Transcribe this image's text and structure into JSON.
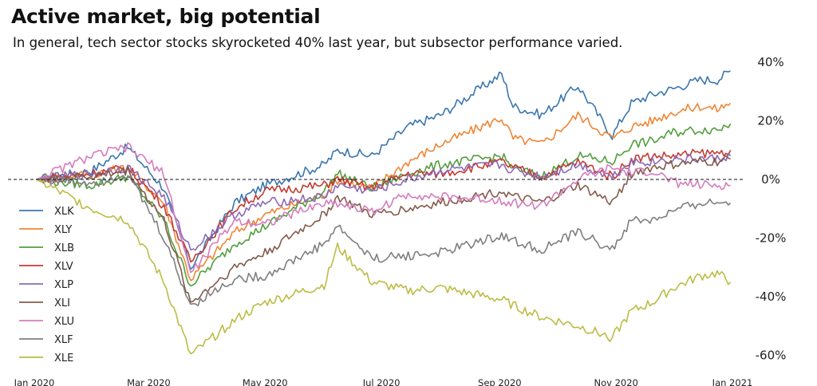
{
  "chart_data": {
    "type": "line",
    "title": "Active market, big potential",
    "subtitle": "In general, tech sector stocks skyrocketed 40% last year, but subsector performance varied.",
    "x_tick_labels": [
      "Jan 2020",
      "Mar 2020",
      "May 2020",
      "Jul 2020",
      "Sep 2020",
      "Nov 2020",
      "Jan 2021"
    ],
    "x_tick_dates": [
      "2020-01-01",
      "2020-03-01",
      "2020-05-01",
      "2020-07-01",
      "2020-09-01",
      "2020-11-01",
      "2021-01-01"
    ],
    "y_tick_values": [
      40,
      20,
      0,
      -20,
      -40,
      -60
    ],
    "y_tick_labels": [
      "40%",
      "20%",
      "0%",
      "-20%",
      "-40%",
      "-60%"
    ],
    "ylim": [
      -62,
      42
    ],
    "xlim": [
      "2020-01-01",
      "2021-01-01"
    ],
    "zero_line": "dashed",
    "legend_position": "left",
    "grid": false,
    "series": [
      {
        "name": "XLK",
        "color": "#3b76af",
        "x": [
          "2020-01-02",
          "2020-01-31",
          "2020-02-19",
          "2020-03-09",
          "2020-03-23",
          "2020-04-15",
          "2020-05-01",
          "2020-06-01",
          "2020-06-08",
          "2020-06-26",
          "2020-07-15",
          "2020-08-01",
          "2020-09-02",
          "2020-09-08",
          "2020-09-23",
          "2020-10-12",
          "2020-10-30",
          "2020-11-09",
          "2020-11-20",
          "2020-12-01",
          "2020-12-15",
          "2020-12-24",
          "2020-12-31"
        ],
        "y": [
          0,
          3,
          11,
          -3,
          -30,
          -8,
          -2,
          5,
          10,
          8,
          18,
          22,
          36,
          25,
          22,
          32,
          15,
          26,
          29,
          31,
          34,
          34,
          37
        ]
      },
      {
        "name": "XLY",
        "color": "#ef8636",
        "x": [
          "2020-01-02",
          "2020-01-31",
          "2020-02-19",
          "2020-03-09",
          "2020-03-23",
          "2020-04-15",
          "2020-05-01",
          "2020-06-01",
          "2020-06-08",
          "2020-06-26",
          "2020-07-15",
          "2020-08-01",
          "2020-09-02",
          "2020-09-08",
          "2020-09-23",
          "2020-10-12",
          "2020-10-30",
          "2020-11-09",
          "2020-11-20",
          "2020-12-01",
          "2020-12-15",
          "2020-12-24",
          "2020-12-31"
        ],
        "y": [
          0,
          2,
          4,
          -8,
          -34,
          -18,
          -12,
          -5,
          0,
          -3,
          6,
          12,
          21,
          14,
          12,
          22,
          14,
          18,
          20,
          23,
          25,
          24,
          26
        ]
      },
      {
        "name": "XLB",
        "color": "#529e3e",
        "x": [
          "2020-01-02",
          "2020-01-31",
          "2020-02-19",
          "2020-03-09",
          "2020-03-23",
          "2020-04-15",
          "2020-05-01",
          "2020-06-01",
          "2020-06-08",
          "2020-06-26",
          "2020-07-15",
          "2020-08-01",
          "2020-09-02",
          "2020-09-08",
          "2020-09-23",
          "2020-10-12",
          "2020-10-30",
          "2020-11-09",
          "2020-11-20",
          "2020-12-01",
          "2020-12-15",
          "2020-12-24",
          "2020-12-31"
        ],
        "y": [
          0,
          -2,
          1,
          -14,
          -36,
          -22,
          -16,
          -4,
          2,
          -3,
          2,
          5,
          8,
          4,
          1,
          8,
          6,
          12,
          13,
          16,
          17,
          17,
          19
        ]
      },
      {
        "name": "XLV",
        "color": "#c53a32",
        "x": [
          "2020-01-02",
          "2020-01-31",
          "2020-02-19",
          "2020-03-09",
          "2020-03-23",
          "2020-04-15",
          "2020-05-01",
          "2020-06-01",
          "2020-06-08",
          "2020-06-26",
          "2020-07-15",
          "2020-08-01",
          "2020-09-02",
          "2020-09-08",
          "2020-09-23",
          "2020-10-12",
          "2020-10-30",
          "2020-11-09",
          "2020-11-20",
          "2020-12-01",
          "2020-12-15",
          "2020-12-24",
          "2020-12-31"
        ],
        "y": [
          0,
          2,
          4,
          -9,
          -28,
          -10,
          -4,
          -2,
          0,
          -3,
          2,
          2,
          6,
          4,
          1,
          6,
          1,
          7,
          8,
          8,
          9,
          9,
          10
        ]
      },
      {
        "name": "XLP",
        "color": "#8d69b8",
        "x": [
          "2020-01-02",
          "2020-01-31",
          "2020-02-19",
          "2020-03-09",
          "2020-03-23",
          "2020-04-15",
          "2020-05-01",
          "2020-06-01",
          "2020-06-08",
          "2020-06-26",
          "2020-07-15",
          "2020-08-01",
          "2020-09-02",
          "2020-09-08",
          "2020-09-23",
          "2020-10-12",
          "2020-10-30",
          "2020-11-09",
          "2020-11-20",
          "2020-12-01",
          "2020-12-15",
          "2020-12-24",
          "2020-12-31"
        ],
        "y": [
          0,
          2,
          4,
          -6,
          -24,
          -12,
          -8,
          -6,
          -2,
          -4,
          0,
          3,
          5,
          3,
          1,
          5,
          1,
          6,
          6,
          7,
          7,
          7,
          8
        ]
      },
      {
        "name": "XLI",
        "color": "#845b4c",
        "x": [
          "2020-01-02",
          "2020-01-31",
          "2020-02-19",
          "2020-03-09",
          "2020-03-23",
          "2020-04-15",
          "2020-05-01",
          "2020-06-01",
          "2020-06-08",
          "2020-06-26",
          "2020-07-15",
          "2020-08-01",
          "2020-09-02",
          "2020-09-08",
          "2020-09-23",
          "2020-10-12",
          "2020-10-30",
          "2020-11-09",
          "2020-11-20",
          "2020-12-01",
          "2020-12-15",
          "2020-12-24",
          "2020-12-31"
        ],
        "y": [
          0,
          1,
          3,
          -14,
          -42,
          -30,
          -25,
          -12,
          -6,
          -12,
          -10,
          -8,
          -4,
          -6,
          -8,
          -2,
          -8,
          2,
          4,
          5,
          6,
          6,
          7
        ]
      },
      {
        "name": "XLU",
        "color": "#d57cbe",
        "x": [
          "2020-01-02",
          "2020-01-31",
          "2020-02-19",
          "2020-03-09",
          "2020-03-23",
          "2020-04-15",
          "2020-05-01",
          "2020-06-01",
          "2020-06-08",
          "2020-06-26",
          "2020-07-15",
          "2020-08-01",
          "2020-09-02",
          "2020-09-08",
          "2020-09-23",
          "2020-10-12",
          "2020-10-30",
          "2020-11-09",
          "2020-11-20",
          "2020-12-01",
          "2020-12-15",
          "2020-12-24",
          "2020-12-31"
        ],
        "y": [
          0,
          8,
          11,
          2,
          -32,
          -14,
          -15,
          -8,
          -8,
          -11,
          -5,
          -6,
          -7,
          -8,
          -9,
          0,
          4,
          2,
          3,
          -1,
          -2,
          -2,
          -2
        ]
      },
      {
        "name": "XLF",
        "color": "#7f7f7f",
        "x": [
          "2020-01-02",
          "2020-01-31",
          "2020-02-19",
          "2020-03-09",
          "2020-03-23",
          "2020-04-15",
          "2020-05-01",
          "2020-06-01",
          "2020-06-08",
          "2020-06-26",
          "2020-07-15",
          "2020-08-01",
          "2020-09-02",
          "2020-09-08",
          "2020-09-23",
          "2020-10-12",
          "2020-10-30",
          "2020-11-09",
          "2020-11-20",
          "2020-12-01",
          "2020-12-15",
          "2020-12-24",
          "2020-12-31"
        ],
        "y": [
          0,
          -1,
          2,
          -20,
          -43,
          -34,
          -33,
          -22,
          -16,
          -27,
          -26,
          -25,
          -19,
          -21,
          -24,
          -18,
          -24,
          -14,
          -14,
          -11,
          -8,
          -8,
          -8
        ]
      },
      {
        "name": "XLE",
        "color": "#bcbc45",
        "x": [
          "2020-01-02",
          "2020-01-31",
          "2020-02-19",
          "2020-03-09",
          "2020-03-23",
          "2020-04-15",
          "2020-05-01",
          "2020-06-01",
          "2020-06-08",
          "2020-06-26",
          "2020-07-15",
          "2020-08-01",
          "2020-09-02",
          "2020-09-08",
          "2020-09-23",
          "2020-10-12",
          "2020-10-30",
          "2020-11-09",
          "2020-11-20",
          "2020-12-01",
          "2020-12-15",
          "2020-12-24",
          "2020-12-31"
        ],
        "y": [
          0,
          -10,
          -14,
          -35,
          -60,
          -48,
          -42,
          -36,
          -23,
          -35,
          -38,
          -37,
          -41,
          -43,
          -47,
          -50,
          -54,
          -45,
          -42,
          -37,
          -33,
          -32,
          -35
        ]
      }
    ]
  }
}
